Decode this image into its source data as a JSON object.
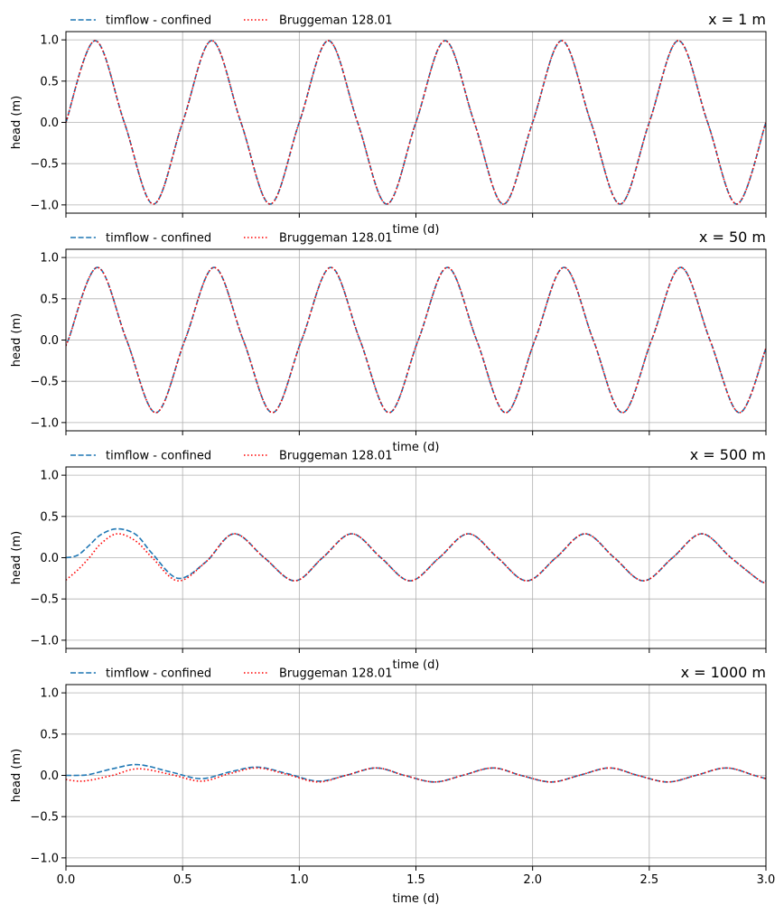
{
  "chart_data": [
    {
      "type": "line",
      "title": "x = 1 m",
      "xlabel": "time (d)",
      "ylabel": "head (m)",
      "xlim": [
        0,
        3
      ],
      "ylim": [
        -1.1,
        1.1
      ],
      "grid": true,
      "legend_placement": "top-left",
      "x_ticks": [
        0.0,
        0.5,
        1.0,
        1.5,
        2.0,
        2.5,
        3.0
      ],
      "x_tick_labels": [],
      "y_ticks": [
        -1.0,
        -0.5,
        0.0,
        0.5,
        1.0
      ],
      "y_tick_labels": [
        "−1.0",
        "−0.5",
        "0.0",
        "0.5",
        "1.0"
      ],
      "x": [
        0,
        0.125,
        0.25,
        0.375,
        0.5,
        0.625,
        0.75,
        0.875,
        1,
        1.125,
        1.25,
        1.375,
        1.5,
        1.625,
        1.75,
        1.875,
        2,
        2.125,
        2.25,
        2.375,
        2.5,
        2.625,
        2.75,
        2.875,
        3
      ],
      "series": [
        {
          "name": "timflow - confined",
          "color": "#1f77b4",
          "style": "dashed",
          "values": [
            0,
            0.99,
            0,
            -0.99,
            0,
            0.99,
            0,
            -0.99,
            0,
            0.99,
            0,
            -0.99,
            0,
            0.99,
            0,
            -0.99,
            0,
            0.99,
            0,
            -0.99,
            0,
            0.99,
            0,
            -0.99,
            0
          ]
        },
        {
          "name": "Bruggeman 128.01",
          "color": "#ff0000",
          "style": "dotted",
          "values": [
            0,
            0.99,
            0,
            -0.99,
            0,
            0.99,
            0,
            -0.99,
            0,
            0.99,
            0,
            -0.99,
            0,
            0.99,
            0,
            -0.99,
            0,
            0.99,
            0,
            -0.99,
            0,
            0.99,
            0,
            -0.99,
            0
          ]
        }
      ]
    },
    {
      "type": "line",
      "title": "x = 50 m",
      "xlabel": "time (d)",
      "ylabel": "head (m)",
      "xlim": [
        0,
        3
      ],
      "ylim": [
        -1.1,
        1.1
      ],
      "grid": true,
      "legend_placement": "top-left",
      "x_ticks": [
        0.0,
        0.5,
        1.0,
        1.5,
        2.0,
        2.5,
        3.0
      ],
      "x_tick_labels": [],
      "y_ticks": [
        -1.0,
        -0.5,
        0.0,
        0.5,
        1.0
      ],
      "y_tick_labels": [
        "−1.0",
        "−0.5",
        "0.0",
        "0.5",
        "1.0"
      ],
      "x": [
        0,
        0.01,
        0.135,
        0.26,
        0.385,
        0.51,
        0.635,
        0.76,
        0.885,
        1.01,
        1.135,
        1.26,
        1.385,
        1.51,
        1.635,
        1.76,
        1.885,
        2.01,
        2.135,
        2.26,
        2.385,
        2.51,
        2.635,
        2.76,
        2.885,
        3
      ],
      "series": [
        {
          "name": "timflow - confined",
          "color": "#1f77b4",
          "style": "dashed",
          "values": [
            -0.05,
            0,
            0.88,
            0,
            -0.88,
            0,
            0.88,
            0,
            -0.88,
            0,
            0.88,
            0,
            -0.88,
            0,
            0.88,
            0,
            -0.88,
            0,
            0.88,
            0,
            -0.88,
            0,
            0.88,
            0,
            -0.88,
            -0.1
          ]
        },
        {
          "name": "Bruggeman 128.01",
          "color": "#ff0000",
          "style": "dotted",
          "values": [
            -0.05,
            0,
            0.88,
            0,
            -0.88,
            0,
            0.88,
            0,
            -0.88,
            0,
            0.88,
            0,
            -0.88,
            0,
            0.88,
            0,
            -0.88,
            0,
            0.88,
            0,
            -0.88,
            0,
            0.88,
            0,
            -0.88,
            -0.1
          ]
        }
      ]
    },
    {
      "type": "line",
      "title": "x = 500 m",
      "xlabel": "time (d)",
      "ylabel": "head (m)",
      "xlim": [
        0,
        3
      ],
      "ylim": [
        -1.1,
        1.1
      ],
      "grid": true,
      "legend_placement": "top-left",
      "x_ticks": [
        0.0,
        0.5,
        1.0,
        1.5,
        2.0,
        2.5,
        3.0
      ],
      "x_tick_labels": [],
      "y_ticks": [
        -1.0,
        -0.5,
        0.0,
        0.5,
        1.0
      ],
      "y_tick_labels": [
        "−1.0",
        "−0.5",
        "0.0",
        "0.5",
        "1.0"
      ],
      "x": [
        0,
        0.05,
        0.1,
        0.15,
        0.22,
        0.3,
        0.37,
        0.48,
        0.6,
        0.72,
        0.85,
        0.98,
        1.1,
        1.225,
        1.35,
        1.475,
        1.6,
        1.725,
        1.85,
        1.975,
        2.1,
        2.225,
        2.35,
        2.475,
        2.6,
        2.725,
        2.85,
        2.975,
        3
      ],
      "series": [
        {
          "name": "timflow - confined",
          "color": "#1f77b4",
          "style": "dashed",
          "values": [
            0.0,
            0.03,
            0.15,
            0.28,
            0.35,
            0.28,
            0.05,
            -0.25,
            -0.05,
            0.29,
            0.0,
            -0.28,
            0.0,
            0.29,
            0.0,
            -0.28,
            0.0,
            0.29,
            0.0,
            -0.28,
            0.0,
            0.29,
            0.0,
            -0.28,
            0.0,
            0.29,
            0.0,
            -0.28,
            -0.28
          ]
        },
        {
          "name": "Bruggeman 128.01",
          "color": "#ff0000",
          "style": "dotted",
          "values": [
            -0.27,
            -0.15,
            0.0,
            0.17,
            0.29,
            0.2,
            0.0,
            -0.28,
            -0.05,
            0.29,
            0.0,
            -0.28,
            0.0,
            0.29,
            0.0,
            -0.28,
            0.0,
            0.29,
            0.0,
            -0.28,
            0.0,
            0.29,
            0.0,
            -0.28,
            0.0,
            0.29,
            0.0,
            -0.28,
            -0.28
          ]
        }
      ]
    },
    {
      "type": "line",
      "title": "x = 1000 m",
      "xlabel": "time (d)",
      "ylabel": "head (m)",
      "xlim": [
        0,
        3
      ],
      "ylim": [
        -1.1,
        1.1
      ],
      "grid": true,
      "legend_placement": "top-left",
      "x_ticks": [
        0.0,
        0.5,
        1.0,
        1.5,
        2.0,
        2.5,
        3.0
      ],
      "x_tick_labels": [
        "0.0",
        "0.5",
        "1.0",
        "1.5",
        "2.0",
        "2.5",
        "3.0"
      ],
      "y_ticks": [
        -1.0,
        -0.5,
        0.0,
        0.5,
        1.0
      ],
      "y_tick_labels": [
        "−1.0",
        "−0.5",
        "0.0",
        "0.5",
        "1.0"
      ],
      "x": [
        0,
        0.05,
        0.1,
        0.2,
        0.31,
        0.45,
        0.58,
        0.7,
        0.82,
        0.95,
        1.08,
        1.2,
        1.33,
        1.45,
        1.58,
        1.7,
        1.83,
        1.95,
        2.08,
        2.2,
        2.33,
        2.45,
        2.58,
        2.7,
        2.83,
        2.95,
        3
      ],
      "series": [
        {
          "name": "timflow - confined",
          "color": "#1f77b4",
          "style": "dashed",
          "values": [
            0.0,
            0.0,
            0.01,
            0.08,
            0.13,
            0.04,
            -0.04,
            0.04,
            0.1,
            0.02,
            -0.07,
            0.0,
            0.09,
            0.0,
            -0.08,
            0.0,
            0.09,
            0.0,
            -0.08,
            0.0,
            0.09,
            0.0,
            -0.08,
            0.0,
            0.09,
            0.0,
            -0.04
          ]
        },
        {
          "name": "Bruggeman 128.01",
          "color": "#ff0000",
          "style": "dotted",
          "values": [
            -0.05,
            -0.07,
            -0.06,
            0.0,
            0.08,
            0.01,
            -0.07,
            0.02,
            0.09,
            0.01,
            -0.08,
            0.0,
            0.09,
            0.0,
            -0.08,
            0.0,
            0.09,
            0.0,
            -0.08,
            0.0,
            0.09,
            0.0,
            -0.08,
            0.0,
            0.09,
            0.0,
            -0.04
          ]
        }
      ]
    }
  ]
}
